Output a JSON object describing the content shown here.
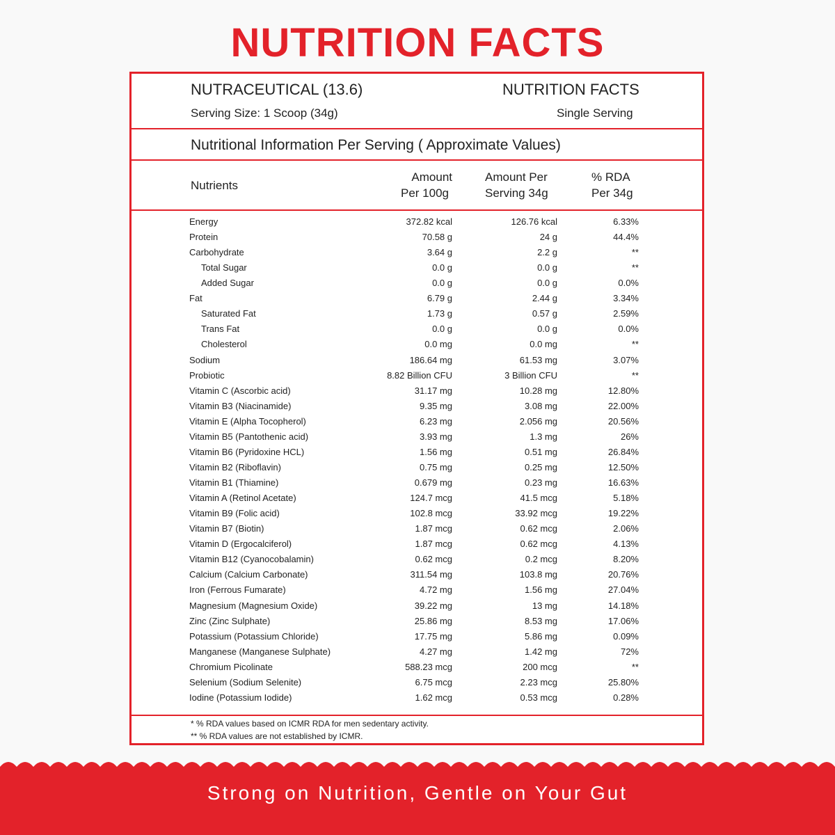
{
  "title": "NUTRITION FACTS",
  "header": {
    "product": "NUTRACEUTICAL (13.6)",
    "label": "NUTRITION FACTS",
    "serving_size": "Serving Size: 1 Scoop (34g)",
    "serving_type": "Single Serving"
  },
  "subtitle": "Nutritional Information Per Serving ( Approximate Values)",
  "table": {
    "columns": [
      "Nutrients",
      [
        "Amount",
        "Per 100g"
      ],
      [
        "Amount Per",
        "Serving 34g"
      ],
      [
        "% RDA",
        "Per 34g"
      ]
    ],
    "rows": [
      {
        "cells": [
          "Energy",
          "372.82 kcal",
          "126.76 kcal",
          "6.33%"
        ]
      },
      {
        "cells": [
          "Protein",
          "70.58 g",
          "24 g",
          "44.4%"
        ]
      },
      {
        "cells": [
          "Carbohydrate",
          "3.64 g",
          "2.2 g",
          "**"
        ],
        "children": [
          [
            "Total Sugar",
            "0.0 g",
            "0.0 g",
            "**"
          ],
          [
            "Added Sugar",
            "0.0 g",
            "0.0 g",
            "0.0%"
          ]
        ]
      },
      {
        "cells": [
          "Fat",
          "6.79 g",
          "2.44 g",
          "3.34%"
        ],
        "children": [
          [
            "Saturated Fat",
            "1.73 g",
            "0.57 g",
            "2.59%"
          ],
          [
            "Trans Fat",
            "0.0 g",
            "0.0 g",
            "0.0%"
          ],
          [
            "Cholesterol",
            "0.0 mg",
            "0.0 mg",
            "**"
          ]
        ]
      },
      {
        "cells": [
          "Sodium",
          "186.64 mg",
          "61.53 mg",
          "3.07%"
        ]
      },
      {
        "cells": [
          "Probiotic",
          "8.82 Billion CFU",
          "3 Billion CFU",
          "**"
        ]
      },
      {
        "cells": [
          "Vitamin C (Ascorbic acid)",
          "31.17 mg",
          "10.28 mg",
          "12.80%"
        ]
      },
      {
        "cells": [
          "Vitamin B3 (Niacinamide)",
          "9.35 mg",
          "3.08 mg",
          "22.00%"
        ]
      },
      {
        "cells": [
          "Vitamin E (Alpha Tocopherol)",
          "6.23 mg",
          "2.056 mg",
          "20.56%"
        ]
      },
      {
        "cells": [
          "Vitamin B5 (Pantothenic acid)",
          "3.93 mg",
          "1.3 mg",
          "26%"
        ]
      },
      {
        "cells": [
          "Vitamin B6 (Pyridoxine HCL)",
          "1.56 mg",
          "0.51 mg",
          "26.84%"
        ]
      },
      {
        "cells": [
          "Vitamin B2 (Riboflavin)",
          "0.75 mg",
          "0.25 mg",
          "12.50%"
        ]
      },
      {
        "cells": [
          "Vitamin B1 (Thiamine)",
          "0.679 mg",
          "0.23 mg",
          "16.63%"
        ]
      },
      {
        "cells": [
          "Vitamin A (Retinol Acetate)",
          "124.7 mcg",
          "41.5 mcg",
          "5.18%"
        ]
      },
      {
        "cells": [
          "Vitamin B9 (Folic acid)",
          "102.8 mcg",
          "33.92 mcg",
          "19.22%"
        ]
      },
      {
        "cells": [
          "Vitamin B7 (Biotin)",
          "1.87 mcg",
          "0.62 mcg",
          "2.06%"
        ]
      },
      {
        "cells": [
          "Vitamin D (Ergocalciferol)",
          "1.87 mcg",
          "0.62 mcg",
          "4.13%"
        ]
      },
      {
        "cells": [
          "Vitamin B12 (Cyanocobalamin)",
          "0.62 mcg",
          "0.2 mcg",
          "8.20%"
        ]
      },
      {
        "cells": [
          "Calcium (Calcium Carbonate)",
          "311.54 mg",
          "103.8 mg",
          "20.76%"
        ]
      },
      {
        "cells": [
          "Iron (Ferrous Fumarate)",
          "4.72 mg",
          "1.56 mg",
          "27.04%"
        ]
      },
      {
        "cells": [
          "Magnesium (Magnesium Oxide)",
          "39.22 mg",
          "13 mg",
          "14.18%"
        ]
      },
      {
        "cells": [
          "Zinc (Zinc Sulphate)",
          "25.86 mg",
          "8.53 mg",
          "17.06%"
        ]
      },
      {
        "cells": [
          "Potassium (Potassium Chloride)",
          "17.75 mg",
          "5.86 mg",
          "0.09%"
        ]
      },
      {
        "cells": [
          "Manganese (Manganese Sulphate)",
          "4.27 mg",
          "1.42 mg",
          "72%"
        ]
      },
      {
        "cells": [
          "Chromium Picolinate",
          "588.23 mcg",
          "200 mcg",
          "**"
        ]
      },
      {
        "cells": [
          "Selenium (Sodium Selenite)",
          "6.75 mcg",
          "2.23 mcg",
          "25.80%"
        ]
      },
      {
        "cells": [
          "Iodine (Potassium Iodide)",
          "1.62 mcg",
          "0.53 mcg",
          "0.28%"
        ]
      }
    ]
  },
  "footnotes": [
    "* % RDA values based on ICMR RDA for men sedentary activity.",
    "** % RDA values are not established by ICMR."
  ],
  "tagline": "Strong on Nutrition, Gentle on Your Gut"
}
